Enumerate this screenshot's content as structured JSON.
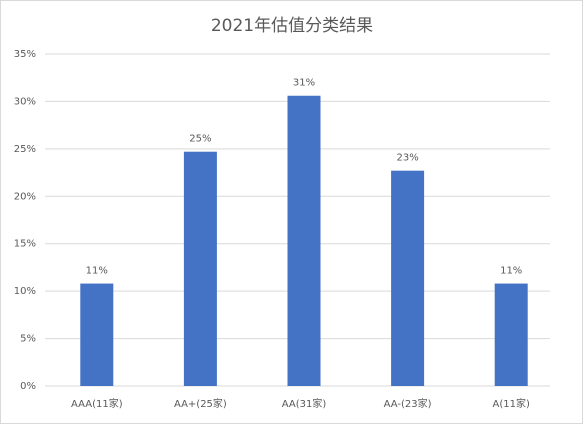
{
  "chart_data": {
    "type": "bar",
    "title": "2021年估值分类结果",
    "categories": [
      "AAA(11家)",
      "AA+(25家)",
      "AA(31家)",
      "AA-(23家)",
      "A(11家)"
    ],
    "values": [
      10.8,
      24.7,
      30.6,
      22.7,
      10.8
    ],
    "value_labels": [
      "11%",
      "25%",
      "31%",
      "23%",
      "11%"
    ],
    "color": "#4472c4",
    "ylim": [
      0,
      35
    ],
    "yticks": [
      {
        "value": 0,
        "label": "0%"
      },
      {
        "value": 5,
        "label": "5%"
      },
      {
        "value": 10,
        "label": "10%"
      },
      {
        "value": 15,
        "label": "15%"
      },
      {
        "value": 20,
        "label": "20%"
      },
      {
        "value": 25,
        "label": "25%"
      },
      {
        "value": 30,
        "label": "30%"
      },
      {
        "value": 35,
        "label": "35%"
      }
    ],
    "grid": true
  }
}
